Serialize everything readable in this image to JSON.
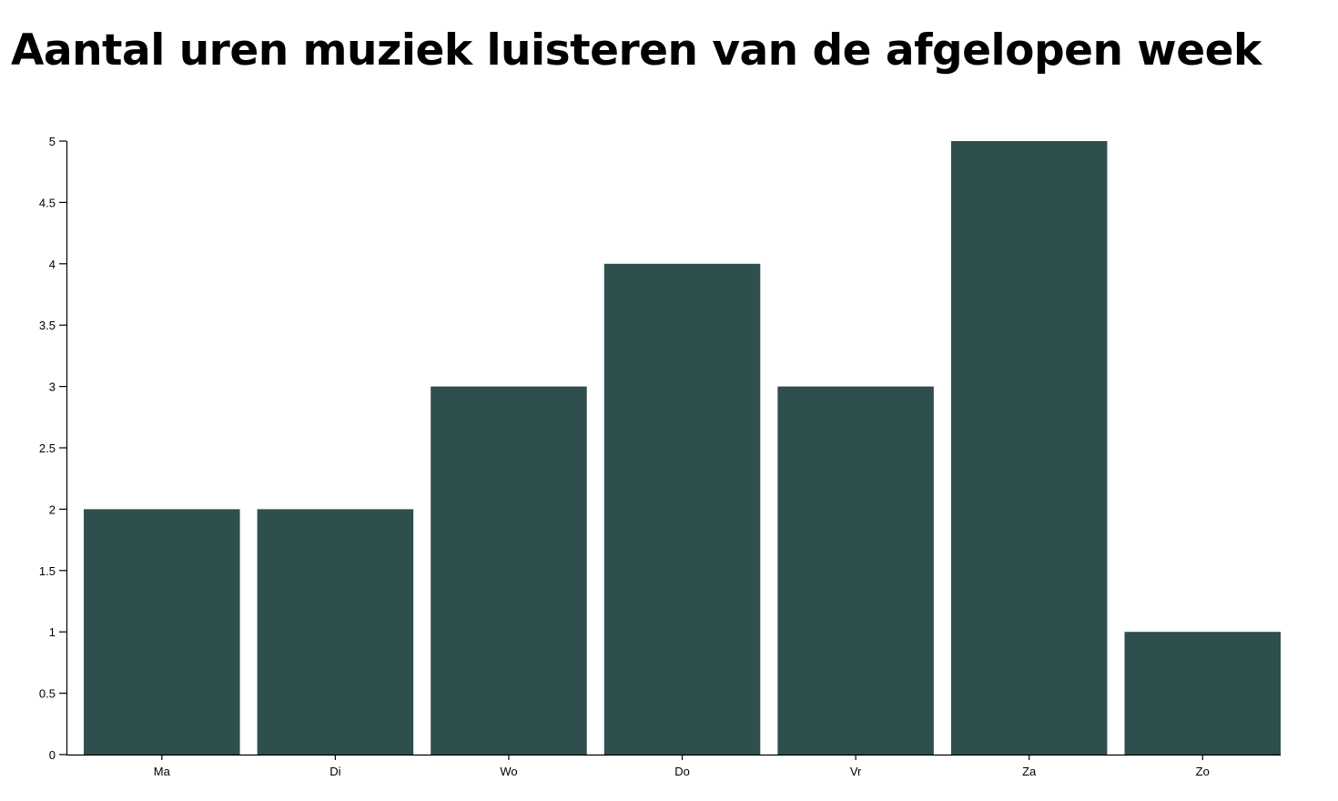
{
  "title": "Aantal uren muziek luisteren van de afgelopen week",
  "colors": {
    "bar": "#2f4f4f",
    "axis": "#000000",
    "background": "#ffffff"
  },
  "chart_data": {
    "type": "bar",
    "title": "Aantal uren muziek luisteren van de afgelopen week",
    "xlabel": "",
    "ylabel": "",
    "categories": [
      "Ma",
      "Di",
      "Wo",
      "Do",
      "Vr",
      "Za",
      "Zo"
    ],
    "values": [
      2,
      2,
      3,
      4,
      3,
      5,
      1
    ],
    "ylim": [
      0,
      5
    ],
    "yticks": [
      "0",
      "0.5",
      "1",
      "1.5",
      "2",
      "2.5",
      "3",
      "3.5",
      "4",
      "4.5",
      "5"
    ],
    "grid": false,
    "legend": "none"
  }
}
